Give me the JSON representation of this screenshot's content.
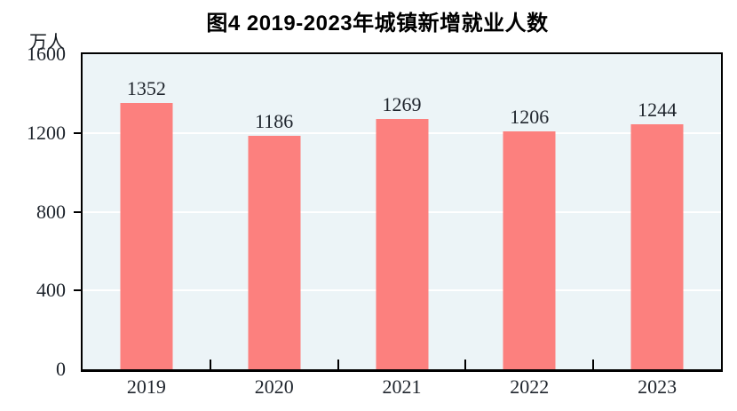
{
  "figure": {
    "title": "图4  2019-2023年城镇新增就业人数",
    "unit_label": "万人"
  },
  "chart_data": {
    "type": "bar",
    "title": "图4  2019-2023年城镇新增就业人数",
    "unit": "万人",
    "categories": [
      "2019",
      "2020",
      "2021",
      "2022",
      "2023"
    ],
    "values": [
      1352,
      1186,
      1269,
      1206,
      1244
    ],
    "ylabel": "万人",
    "xlabel": "",
    "ylim": [
      0,
      1600
    ],
    "yticks": [
      0,
      400,
      800,
      1200,
      1600
    ],
    "grid": true,
    "legend": "none",
    "colors": {
      "bar_fill": "#fc807e",
      "plot_background": "#ecf4f7",
      "gridline": "#ffffff",
      "axis": "#000000",
      "text": "#1e242c"
    }
  }
}
